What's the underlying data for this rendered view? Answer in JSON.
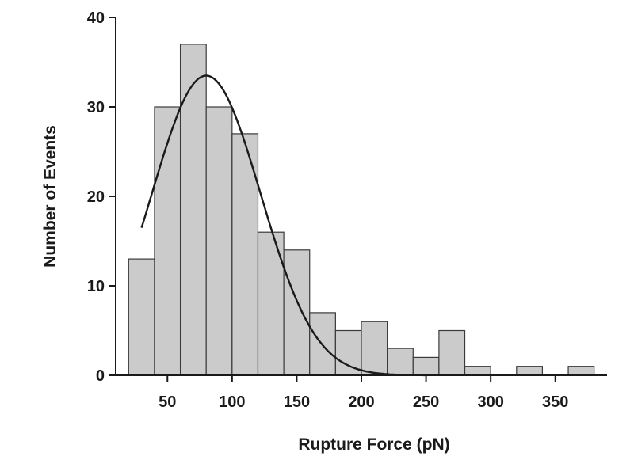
{
  "chart_data": {
    "type": "bar",
    "title": "",
    "xlabel": "Rupture Force (pN)",
    "ylabel": "Number of Events",
    "xlim": [
      10,
      390
    ],
    "ylim": [
      0,
      40
    ],
    "x_ticks": [
      50,
      100,
      150,
      200,
      250,
      300,
      350
    ],
    "y_ticks": [
      0,
      10,
      20,
      30,
      40
    ],
    "bin_width": 20,
    "bins": [
      {
        "start": 20,
        "end": 40,
        "count": 13
      },
      {
        "start": 40,
        "end": 60,
        "count": 30
      },
      {
        "start": 60,
        "end": 80,
        "count": 37
      },
      {
        "start": 80,
        "end": 100,
        "count": 30
      },
      {
        "start": 100,
        "end": 120,
        "count": 27
      },
      {
        "start": 120,
        "end": 140,
        "count": 16
      },
      {
        "start": 140,
        "end": 160,
        "count": 14
      },
      {
        "start": 160,
        "end": 180,
        "count": 7
      },
      {
        "start": 180,
        "end": 200,
        "count": 5
      },
      {
        "start": 200,
        "end": 220,
        "count": 6
      },
      {
        "start": 220,
        "end": 240,
        "count": 3
      },
      {
        "start": 240,
        "end": 260,
        "count": 2
      },
      {
        "start": 260,
        "end": 280,
        "count": 5
      },
      {
        "start": 280,
        "end": 300,
        "count": 1
      },
      {
        "start": 300,
        "end": 320,
        "count": 0
      },
      {
        "start": 320,
        "end": 340,
        "count": 1
      },
      {
        "start": 340,
        "end": 360,
        "count": 0
      },
      {
        "start": 360,
        "end": 380,
        "count": 1
      }
    ],
    "fit_curve": {
      "type": "gaussian",
      "peak_x": 80,
      "peak_y": 33.5,
      "sigma": 42,
      "x_range": [
        30,
        250
      ]
    },
    "grid": false,
    "legend": "none",
    "colors": {
      "bar_fill": "#cbcbcb",
      "bar_stroke": "#3a3a3a",
      "curve": "#1a1a1a"
    }
  }
}
